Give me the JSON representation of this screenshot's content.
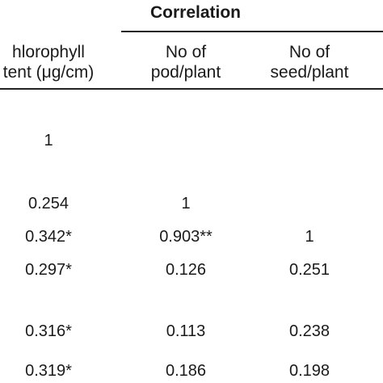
{
  "title": "Correlation",
  "headers": [
    {
      "line1": "hlorophyll",
      "line2": "tent (μg/cm)"
    },
    {
      "line1": "No of",
      "line2": "pod/plant"
    },
    {
      "line1": "No of",
      "line2": "seed/plant"
    }
  ],
  "rows": [
    [
      "1",
      "",
      ""
    ],
    [
      "0.254",
      "1",
      ""
    ],
    [
      "0.342*",
      "0.903**",
      "1"
    ],
    [
      "0.297*",
      "0.126",
      "0.251"
    ],
    [
      "0.316*",
      "0.113",
      "0.238"
    ],
    [
      "0.319*",
      "0.186",
      "0.198"
    ]
  ]
}
